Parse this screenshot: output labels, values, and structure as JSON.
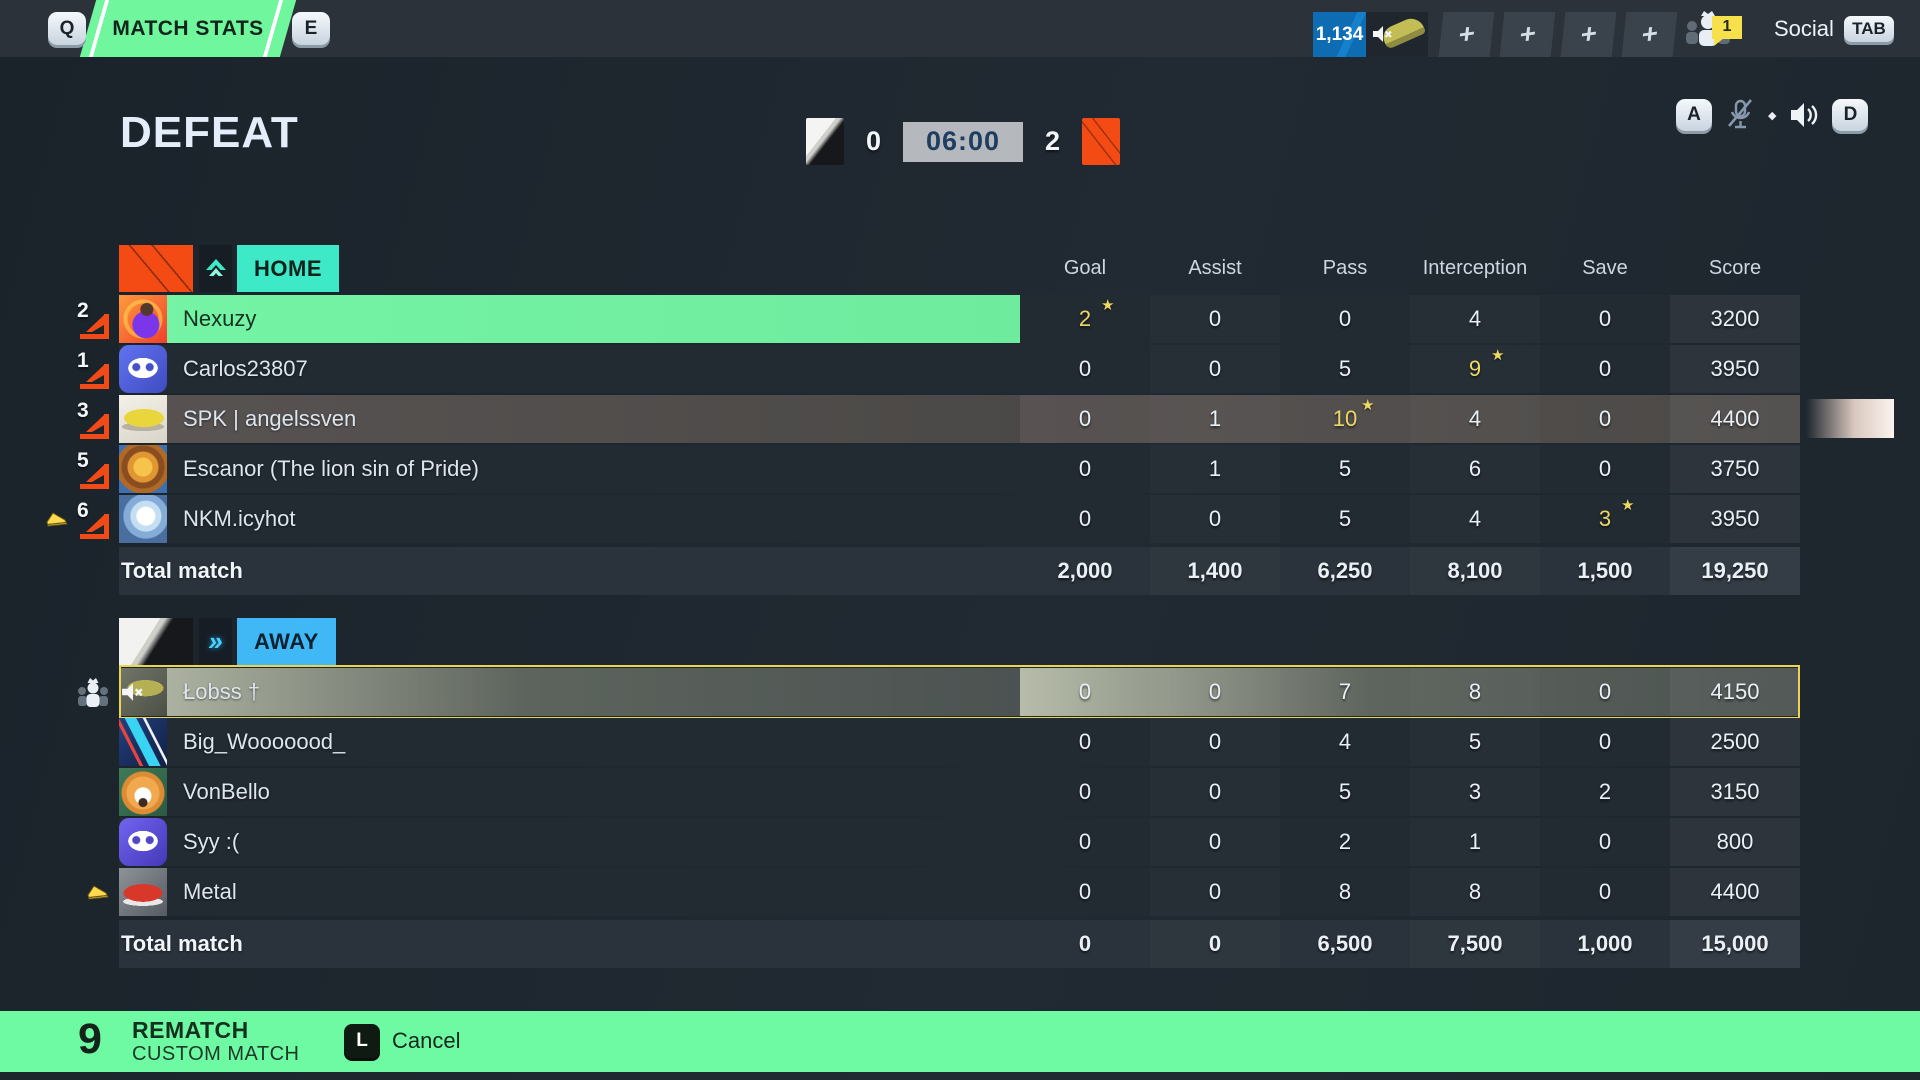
{
  "top_bar": {
    "key_left": "Q",
    "tab_label": "MATCH STATS",
    "key_right": "E",
    "currency": "1,134",
    "plus_label": "+",
    "social_badge": "1",
    "social_label": "Social",
    "social_key": "TAB"
  },
  "header": {
    "result": "DEFEAT",
    "score_left": "0",
    "timer": "06:00",
    "score_right": "2",
    "key_a": "A",
    "key_d": "D"
  },
  "columns": [
    "Goal",
    "Assist",
    "Pass",
    "Interception",
    "Save",
    "Score"
  ],
  "home": {
    "label": "HOME",
    "players": [
      {
        "number": "2",
        "name": "Nexuzy",
        "avatar": "av-celebrate",
        "stats": [
          "2",
          "0",
          "0",
          "4",
          "0",
          "3200"
        ],
        "star_col": 0,
        "highlight": "green"
      },
      {
        "number": "1",
        "name": "Carlos23807",
        "avatar": "av-discord-blue",
        "stats": [
          "0",
          "0",
          "5",
          "9",
          "0",
          "3950"
        ],
        "star_col": 3
      },
      {
        "number": "3",
        "name": "SPK | angelssven",
        "avatar": "av-boot-yellow",
        "stats": [
          "0",
          "1",
          "10",
          "4",
          "0",
          "4400"
        ],
        "star_col": 2,
        "highlight": "gray"
      },
      {
        "number": "5",
        "name": "Escanor (The lion sin of Pride)",
        "avatar": "av-lion",
        "stats": [
          "0",
          "1",
          "5",
          "6",
          "0",
          "3750"
        ]
      },
      {
        "number": "6",
        "name": "NKM.icyhot",
        "avatar": "av-ice-fist",
        "stats": [
          "0",
          "0",
          "5",
          "4",
          "3",
          "3950"
        ],
        "star_col": 4,
        "award_boot": true
      }
    ],
    "total_label": "Total match",
    "totals": [
      "2,000",
      "1,400",
      "6,250",
      "8,100",
      "1,500",
      "19,250"
    ]
  },
  "away": {
    "label": "AWAY",
    "players": [
      {
        "name": "Łobss †",
        "avatar": "av-muted-shoe",
        "stats": [
          "0",
          "0",
          "7",
          "8",
          "0",
          "4150"
        ],
        "selected": true,
        "leader": true,
        "muted": true
      },
      {
        "name": "Big_Wooooood_",
        "avatar": "av-lightning",
        "stats": [
          "0",
          "0",
          "4",
          "5",
          "0",
          "2500"
        ]
      },
      {
        "name": "VonBello",
        "avatar": "av-shiba",
        "stats": [
          "0",
          "0",
          "5",
          "3",
          "2",
          "3150"
        ]
      },
      {
        "name": "Syy :(",
        "avatar": "av-discord-purple",
        "stats": [
          "0",
          "0",
          "2",
          "1",
          "0",
          "800"
        ]
      },
      {
        "name": "Metal",
        "avatar": "av-red-sneaker",
        "stats": [
          "0",
          "0",
          "8",
          "8",
          "0",
          "4400"
        ],
        "award_boot": true
      }
    ],
    "total_label": "Total match",
    "totals": [
      "0",
      "0",
      "6,500",
      "7,500",
      "1,000",
      "15,000"
    ]
  },
  "bottom_bar": {
    "countdown": "9",
    "primary_label": "REMATCH",
    "secondary_label": "CUSTOM MATCH",
    "cancel_key": "L",
    "cancel_label": "Cancel"
  },
  "icons": {
    "star": "★",
    "diamond": "◆",
    "away_chevrons": "»"
  },
  "colors": {
    "accent_green": "#6ef9a3",
    "accent_teal": "#3de9c6",
    "accent_blue": "#41b8f6",
    "currency_blue": "#0d6cb2",
    "highlight_yellow": "#ead54e",
    "star_yellow": "#ecd964",
    "home_flag_orange": "#f34b13"
  }
}
